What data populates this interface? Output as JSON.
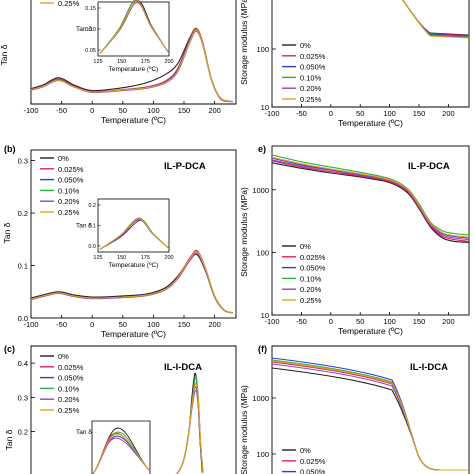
{
  "common": {
    "tan_label": "Tan δ",
    "sm_label": "Storage modulus (MPa)",
    "temp_label": "Temperature (ºC)",
    "xticks": [
      "-100",
      "-50",
      "0",
      "50",
      "100",
      "150",
      "200"
    ],
    "inset_xticks": [
      "125",
      "150",
      "175",
      "200"
    ],
    "legend": [
      "0%",
      "0.025%",
      "0.050%",
      "0.10%",
      "0.20%",
      "0.25%"
    ],
    "series_colors": [
      "#222222",
      "#e8204a",
      "#2b3bd6",
      "#27b53a",
      "#9b3fc4",
      "#e0a11a"
    ]
  },
  "chart_data": [
    {
      "id": "a",
      "type": "line",
      "xlabel": "Temperature (ºC)",
      "ylabel": "Tan δ",
      "xlim": [
        -100,
        235
      ],
      "ylim": [
        0,
        0.28
      ],
      "series": [
        {
          "name": "0%",
          "x": [
            -100,
            -80,
            -55,
            -30,
            0,
            50,
            90,
            120,
            140,
            160,
            170,
            180,
            195,
            210,
            230
          ],
          "y": [
            0.032,
            0.04,
            0.055,
            0.04,
            0.028,
            0.034,
            0.045,
            0.062,
            0.085,
            0.14,
            0.158,
            0.13,
            0.05,
            0.01,
            0.005
          ]
        },
        {
          "name": "0.025%",
          "x": [
            -100,
            -80,
            -55,
            -30,
            0,
            50,
            90,
            120,
            140,
            160,
            170,
            180,
            195,
            210,
            230
          ],
          "y": [
            0.03,
            0.038,
            0.052,
            0.038,
            0.026,
            0.03,
            0.036,
            0.048,
            0.075,
            0.138,
            0.158,
            0.132,
            0.052,
            0.012,
            0.005
          ]
        },
        {
          "name": "0.050%",
          "x": [
            -100,
            -80,
            -55,
            -30,
            0,
            50,
            90,
            120,
            140,
            160,
            170,
            180,
            195,
            210,
            230
          ],
          "y": [
            0.03,
            0.038,
            0.051,
            0.037,
            0.025,
            0.029,
            0.035,
            0.046,
            0.072,
            0.135,
            0.155,
            0.13,
            0.05,
            0.011,
            0.005
          ]
        },
        {
          "name": "0.10%",
          "x": [
            -100,
            -80,
            -55,
            -30,
            0,
            50,
            90,
            120,
            140,
            160,
            170,
            180,
            195,
            210,
            230
          ],
          "y": [
            0.029,
            0.037,
            0.05,
            0.036,
            0.025,
            0.029,
            0.034,
            0.045,
            0.07,
            0.133,
            0.156,
            0.128,
            0.05,
            0.011,
            0.005
          ]
        },
        {
          "name": "0.20%",
          "x": [
            -100,
            -80,
            -55,
            -30,
            0,
            50,
            90,
            120,
            140,
            160,
            170,
            180,
            195,
            210,
            230
          ],
          "y": [
            0.029,
            0.036,
            0.049,
            0.036,
            0.024,
            0.028,
            0.033,
            0.044,
            0.068,
            0.13,
            0.152,
            0.127,
            0.05,
            0.011,
            0.005
          ]
        },
        {
          "name": "0.25%",
          "x": [
            -100,
            -80,
            -55,
            -30,
            0,
            50,
            90,
            120,
            140,
            160,
            170,
            180,
            195,
            210,
            230
          ],
          "y": [
            0.03,
            0.037,
            0.05,
            0.036,
            0.025,
            0.029,
            0.034,
            0.045,
            0.07,
            0.132,
            0.154,
            0.129,
            0.05,
            0.011,
            0.005
          ]
        }
      ],
      "inset": {
        "xlim": [
          125,
          200
        ],
        "ylim": [
          0.05,
          0.15
        ],
        "yticks": [
          "0.15",
          "0.10",
          "0.05"
        ],
        "series_peaks_x": [
          167,
          165,
          166,
          165,
          166,
          166
        ],
        "series_peaks_y": [
          0.152,
          0.154,
          0.151,
          0.153,
          0.149,
          0.151
        ]
      }
    },
    {
      "id": "b",
      "type": "line",
      "title": "IL-P-DCA",
      "xlabel": "Temperature (ºC)",
      "ylabel": "Tan δ",
      "xlim": [
        -100,
        235
      ],
      "ylim": [
        0,
        0.32
      ],
      "yticks": [
        "0.3",
        "0.2",
        "0.1",
        "0.0"
      ],
      "series": [
        {
          "name": "0%",
          "x": [
            -100,
            -80,
            -55,
            -30,
            0,
            50,
            90,
            120,
            140,
            160,
            172,
            185,
            200,
            215,
            230
          ],
          "y": [
            0.038,
            0.044,
            0.05,
            0.044,
            0.04,
            0.042,
            0.046,
            0.058,
            0.08,
            0.112,
            0.12,
            0.09,
            0.04,
            0.015,
            0.01
          ]
        },
        {
          "name": "0.025%",
          "x": [
            -100,
            -80,
            -55,
            -30,
            0,
            50,
            90,
            120,
            140,
            160,
            172,
            185,
            200,
            215,
            230
          ],
          "y": [
            0.036,
            0.042,
            0.048,
            0.042,
            0.038,
            0.04,
            0.044,
            0.055,
            0.078,
            0.115,
            0.128,
            0.095,
            0.042,
            0.016,
            0.01
          ]
        },
        {
          "name": "0.050%",
          "x": [
            -100,
            -80,
            -55,
            -30,
            0,
            50,
            90,
            120,
            140,
            160,
            172,
            185,
            200,
            215,
            230
          ],
          "y": [
            0.036,
            0.042,
            0.048,
            0.042,
            0.038,
            0.04,
            0.044,
            0.055,
            0.077,
            0.113,
            0.126,
            0.094,
            0.042,
            0.016,
            0.01
          ]
        },
        {
          "name": "0.10%",
          "x": [
            -100,
            -80,
            -55,
            -30,
            0,
            50,
            90,
            120,
            140,
            160,
            172,
            185,
            200,
            215,
            230
          ],
          "y": [
            0.035,
            0.041,
            0.047,
            0.041,
            0.037,
            0.039,
            0.043,
            0.054,
            0.076,
            0.112,
            0.125,
            0.093,
            0.041,
            0.015,
            0.01
          ]
        },
        {
          "name": "0.20%",
          "x": [
            -100,
            -80,
            -55,
            -30,
            0,
            50,
            90,
            120,
            140,
            160,
            172,
            185,
            200,
            215,
            230
          ],
          "y": [
            0.035,
            0.041,
            0.047,
            0.041,
            0.037,
            0.039,
            0.043,
            0.054,
            0.075,
            0.11,
            0.122,
            0.092,
            0.041,
            0.015,
            0.01
          ]
        },
        {
          "name": "0.25%",
          "x": [
            -100,
            -80,
            -55,
            -30,
            0,
            50,
            90,
            120,
            140,
            160,
            172,
            185,
            200,
            215,
            230
          ],
          "y": [
            0.036,
            0.042,
            0.048,
            0.042,
            0.038,
            0.04,
            0.044,
            0.055,
            0.077,
            0.113,
            0.126,
            0.094,
            0.042,
            0.016,
            0.01
          ]
        }
      ],
      "inset": {
        "xlim": [
          125,
          200
        ],
        "ylim": [
          0,
          0.2
        ],
        "yticks": [
          "0.2",
          "0.1",
          "0.0"
        ],
        "series_peaks_x": [
          170,
          168,
          168,
          169,
          168,
          168
        ],
        "series_peaks_y": [
          0.12,
          0.128,
          0.126,
          0.125,
          0.122,
          0.126
        ]
      }
    },
    {
      "id": "c",
      "type": "line",
      "title": "IL-I-DCA",
      "xlabel": "Temperature (ºC)",
      "ylabel": "Tan δ",
      "xlim": [
        -100,
        235
      ],
      "ylim": [
        0,
        0.45
      ],
      "yticks": [
        "0.4",
        "0.3",
        "0.2"
      ],
      "series": [
        {
          "name": "0%",
          "x": [
            120,
            140,
            150,
            158,
            163,
            168,
            172,
            176,
            180
          ],
          "y": [
            0.05,
            0.08,
            0.12,
            0.2,
            0.3,
            0.37,
            0.32,
            0.18,
            0.08
          ]
        },
        {
          "name": "0.025%",
          "x": [
            120,
            140,
            150,
            158,
            164,
            169,
            173,
            177,
            181
          ],
          "y": [
            0.05,
            0.08,
            0.12,
            0.2,
            0.3,
            0.34,
            0.3,
            0.17,
            0.08
          ]
        },
        {
          "name": "0.050%",
          "x": [
            120,
            140,
            150,
            158,
            164,
            169,
            173,
            177,
            181
          ],
          "y": [
            0.05,
            0.08,
            0.12,
            0.2,
            0.29,
            0.33,
            0.29,
            0.16,
            0.08
          ]
        },
        {
          "name": "0.10%",
          "x": [
            120,
            140,
            150,
            158,
            164,
            169,
            173,
            177,
            181
          ],
          "y": [
            0.05,
            0.08,
            0.12,
            0.2,
            0.3,
            0.36,
            0.31,
            0.17,
            0.08
          ]
        },
        {
          "name": "0.20%",
          "x": [
            120,
            140,
            150,
            158,
            164,
            169,
            173,
            177,
            181
          ],
          "y": [
            0.05,
            0.08,
            0.12,
            0.2,
            0.28,
            0.32,
            0.28,
            0.16,
            0.08
          ]
        },
        {
          "name": "0.25%",
          "x": [
            120,
            140,
            150,
            158,
            164,
            169,
            173,
            177,
            181
          ],
          "y": [
            0.05,
            0.08,
            0.12,
            0.2,
            0.29,
            0.34,
            0.3,
            0.17,
            0.08
          ]
        }
      ]
    },
    {
      "id": "d",
      "type": "line",
      "xlabel": "Temperature (ºC)",
      "ylabel": "Storage modulus (MPa)",
      "xlim": [
        -100,
        235
      ],
      "ylim": [
        10,
        1000
      ],
      "yscale": "log",
      "yticks": [
        "100",
        "10"
      ]
    },
    {
      "id": "e",
      "type": "line",
      "title": "IL-P-DCA",
      "xlabel": "Temperature (ºC)",
      "ylabel": "Storage modulus (MPa)",
      "xlim": [
        -100,
        235
      ],
      "ylim": [
        10,
        5000
      ],
      "yscale": "log",
      "yticks": [
        "1000",
        "100",
        "10"
      ],
      "series": [
        {
          "name": "0%",
          "x": [
            -100,
            -50,
            0,
            50,
            100,
            130,
            150,
            170,
            190,
            210,
            235
          ],
          "y": [
            2700,
            2200,
            1850,
            1600,
            1300,
            900,
            500,
            250,
            170,
            150,
            145
          ]
        },
        {
          "name": "0.025%",
          "x": [
            -100,
            -50,
            0,
            50,
            100,
            130,
            150,
            170,
            190,
            210,
            235
          ],
          "y": [
            2900,
            2300,
            1950,
            1650,
            1350,
            950,
            520,
            260,
            180,
            160,
            150
          ]
        },
        {
          "name": "0.050%",
          "x": [
            -100,
            -50,
            0,
            50,
            100,
            130,
            150,
            170,
            190,
            210,
            235
          ],
          "y": [
            3200,
            2500,
            2100,
            1750,
            1420,
            1000,
            560,
            280,
            200,
            180,
            170
          ]
        },
        {
          "name": "0.10%",
          "x": [
            -100,
            -50,
            0,
            50,
            100,
            130,
            150,
            170,
            190,
            210,
            235
          ],
          "y": [
            3600,
            2800,
            2300,
            1900,
            1500,
            1050,
            600,
            300,
            220,
            200,
            190
          ]
        },
        {
          "name": "0.20%",
          "x": [
            -100,
            -50,
            0,
            50,
            100,
            130,
            150,
            170,
            190,
            210,
            235
          ],
          "y": [
            3000,
            2400,
            2050,
            1700,
            1400,
            980,
            540,
            270,
            190,
            170,
            160
          ]
        },
        {
          "name": "0.25%",
          "x": [
            -100,
            -50,
            0,
            50,
            100,
            130,
            150,
            170,
            190,
            210,
            235
          ],
          "y": [
            3300,
            2600,
            2150,
            1800,
            1450,
            1020,
            570,
            290,
            205,
            185,
            175
          ]
        }
      ]
    },
    {
      "id": "f",
      "type": "line",
      "title": "IL-I-DCA",
      "xlabel": "Temperature (ºC)",
      "ylabel": "Storage modulus (MPa)",
      "yscale": "log",
      "yticks": [
        "1000",
        "100"
      ]
    }
  ],
  "panels": {
    "a": {
      "partial_legend": "0.25%"
    },
    "b": {
      "label": "(b)",
      "title": "IL-P-DCA"
    },
    "c": {
      "label": "(c)",
      "title": "IL-I-DCA"
    },
    "e": {
      "label": "e)",
      "title": "IL-P-DCA"
    },
    "f": {
      "label": "(f)",
      "title": "IL-I-DCA",
      "partial_legend": [
        "0%",
        "0.025%",
        "0.050%"
      ]
    }
  }
}
